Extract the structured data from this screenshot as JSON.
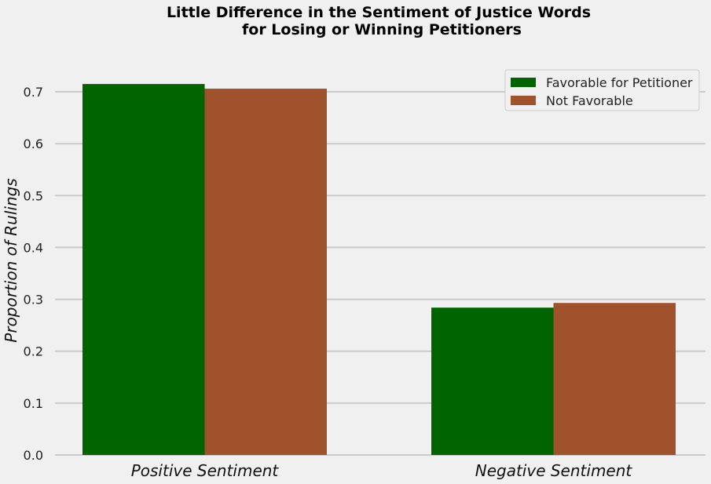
{
  "chart_data": {
    "type": "bar",
    "title": "Little Difference in the Sentiment of Justice Words\nfor Losing or Winning Petitioners",
    "xlabel": "",
    "ylabel": "Proportion of Rulings",
    "categories": [
      "Positive Sentiment",
      "Negative Sentiment"
    ],
    "series": [
      {
        "name": "Favorable for Petitioner",
        "color": "#006400",
        "values": [
          0.715,
          0.284
        ]
      },
      {
        "name": "Not Favorable",
        "color": "#a0522d",
        "values": [
          0.706,
          0.293
        ]
      }
    ],
    "ylim": [
      0,
      0.7
    ],
    "yticks": [
      "0.0",
      "0.1",
      "0.2",
      "0.3",
      "0.4",
      "0.5",
      "0.6",
      "0.7"
    ],
    "grid": "horizontal",
    "legend_position": "top-right"
  },
  "colors": {
    "background": "#f0f0f0",
    "grid": "#cbcbcb",
    "legend_background": "#f0f0f0",
    "legend_border": "#cccccc"
  }
}
